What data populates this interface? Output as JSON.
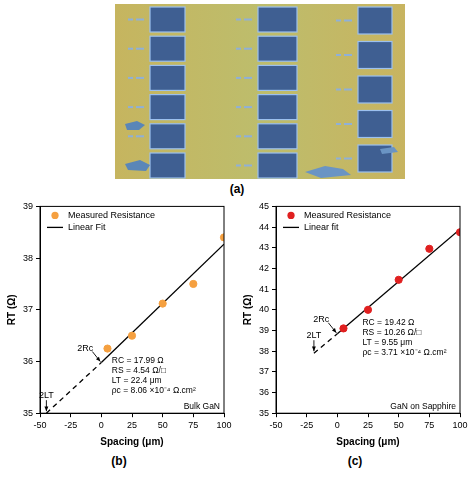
{
  "figure": {
    "panel_label": "(a)"
  },
  "chart_data": [
    {
      "type": "scatter",
      "panel_label": "(b)",
      "x_label": "Spacing (μm)",
      "y_label": "RT (Ω)",
      "xlim": [
        -50,
        100
      ],
      "ylim": [
        35,
        39
      ],
      "xticks": [
        -50,
        -25,
        0,
        25,
        50,
        75,
        100
      ],
      "yticks": [
        35,
        36,
        37,
        38,
        39
      ],
      "grid": false,
      "legend": "upper left",
      "series": [
        {
          "name": "Measured Resistance",
          "type": "scatter",
          "marker": "circle",
          "color": "#f5a040",
          "x": [
            5,
            25,
            50,
            75,
            100
          ],
          "values": [
            36.25,
            36.5,
            37.12,
            37.5,
            38.4
          ]
        },
        {
          "name": "Linear Fit",
          "type": "line",
          "line_style": "solid",
          "color": "#000000",
          "x": [
            0,
            100
          ],
          "values": [
            35.98,
            38.27
          ]
        },
        {
          "type": "line",
          "line_style": "dashed",
          "color": "#000000",
          "x": [
            -44.8,
            0
          ],
          "values": [
            35,
            35.98
          ]
        }
      ],
      "annotations": [
        "RC = 17.99 Ω",
        "RS = 4.54 Ω/□",
        "LT = 22.4 μm",
        "ρc = 8.06 ×10⁻⁴ Ω.cm²"
      ],
      "intercept_label": "2Rc",
      "length_label": "2LT",
      "sample_label": "Bulk GaN"
    },
    {
      "type": "scatter",
      "panel_label": "(c)",
      "x_label": "Spacing (μm)",
      "y_label": "RT (Ω)",
      "xlim": [
        -50,
        100
      ],
      "ylim": [
        35,
        45
      ],
      "xticks": [
        -50,
        -25,
        0,
        25,
        50,
        75,
        100
      ],
      "yticks": [
        35,
        36,
        37,
        38,
        39,
        40,
        41,
        42,
        43,
        44,
        45
      ],
      "grid": false,
      "legend": "upper left",
      "series": [
        {
          "name": "Measured Resistance",
          "type": "scatter",
          "marker": "circle",
          "color": "#e02020",
          "x": [
            5,
            25,
            50,
            75,
            100
          ],
          "values": [
            39.1,
            40.0,
            41.45,
            42.95,
            43.75
          ]
        },
        {
          "name": "Linear fit",
          "type": "line",
          "line_style": "solid",
          "color": "#000000",
          "x": [
            0,
            100
          ],
          "values": [
            38.84,
            43.9
          ]
        },
        {
          "type": "line",
          "line_style": "dashed",
          "color": "#000000",
          "x": [
            -19.1,
            0
          ],
          "values": [
            37.9,
            38.84
          ]
        }
      ],
      "annotations": [
        "RC = 19.42 Ω",
        "RS = 10.26 Ω/□",
        "LT = 9.55 μm",
        "ρc = 3.71 ×10⁻⁴ Ω.cm²"
      ],
      "intercept_label": "2Rc",
      "length_label": "2LT",
      "sample_label": "GaN on Sapphire"
    }
  ]
}
